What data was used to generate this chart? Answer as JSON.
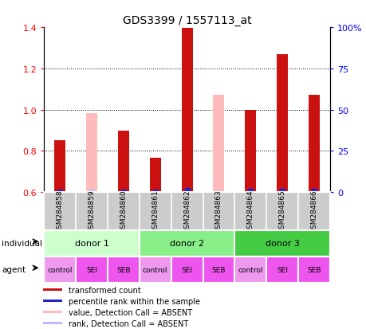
{
  "title": "GDS3399 / 1557113_at",
  "samples": [
    "GSM284858",
    "GSM284859",
    "GSM284860",
    "GSM284861",
    "GSM284862",
    "GSM284863",
    "GSM284864",
    "GSM284865",
    "GSM284866"
  ],
  "red_values": [
    0.853,
    0.982,
    0.9,
    0.768,
    1.395,
    1.073,
    0.997,
    1.268,
    1.072
  ],
  "blue_values": [
    0.195,
    0.315,
    0.245,
    0.24,
    0.825,
    null,
    0.52,
    0.795,
    0.75
  ],
  "absent_red": [
    false,
    true,
    false,
    false,
    false,
    true,
    false,
    false,
    false
  ],
  "absent_blue": [
    false,
    true,
    false,
    false,
    false,
    false,
    false,
    false,
    false
  ],
  "ylim_left": [
    0.6,
    1.4
  ],
  "ylim_right": [
    0,
    100
  ],
  "yticks_left": [
    0.6,
    0.8,
    1.0,
    1.2,
    1.4
  ],
  "yticks_right": [
    0,
    25,
    50,
    75,
    100
  ],
  "ytick_labels_right": [
    "0",
    "25",
    "50",
    "75",
    "100%"
  ],
  "baseline": 0.6,
  "donors": [
    {
      "label": "donor 1",
      "start": 0,
      "end": 3
    },
    {
      "label": "donor 2",
      "start": 3,
      "end": 6
    },
    {
      "label": "donor 3",
      "start": 6,
      "end": 9
    }
  ],
  "donor_colors": [
    "#ccffcc",
    "#88ee88",
    "#44cc44"
  ],
  "agents": [
    "control",
    "SEI",
    "SEB",
    "control",
    "SEI",
    "SEB",
    "control",
    "SEI",
    "SEB"
  ],
  "agent_color_control": "#ee99ee",
  "agent_color_other": "#ee55ee",
  "bar_width": 0.35,
  "red_color": "#cc1111",
  "blue_color": "#2222cc",
  "absent_red_color": "#ffbbbb",
  "absent_blue_color": "#bbbbff",
  "gray_bg": "#cccccc",
  "legend_items": [
    {
      "color": "#cc1111",
      "label": "transformed count"
    },
    {
      "color": "#2222cc",
      "label": "percentile rank within the sample"
    },
    {
      "color": "#ffbbbb",
      "label": "value, Detection Call = ABSENT"
    },
    {
      "color": "#bbbbff",
      "label": "rank, Detection Call = ABSENT"
    }
  ]
}
